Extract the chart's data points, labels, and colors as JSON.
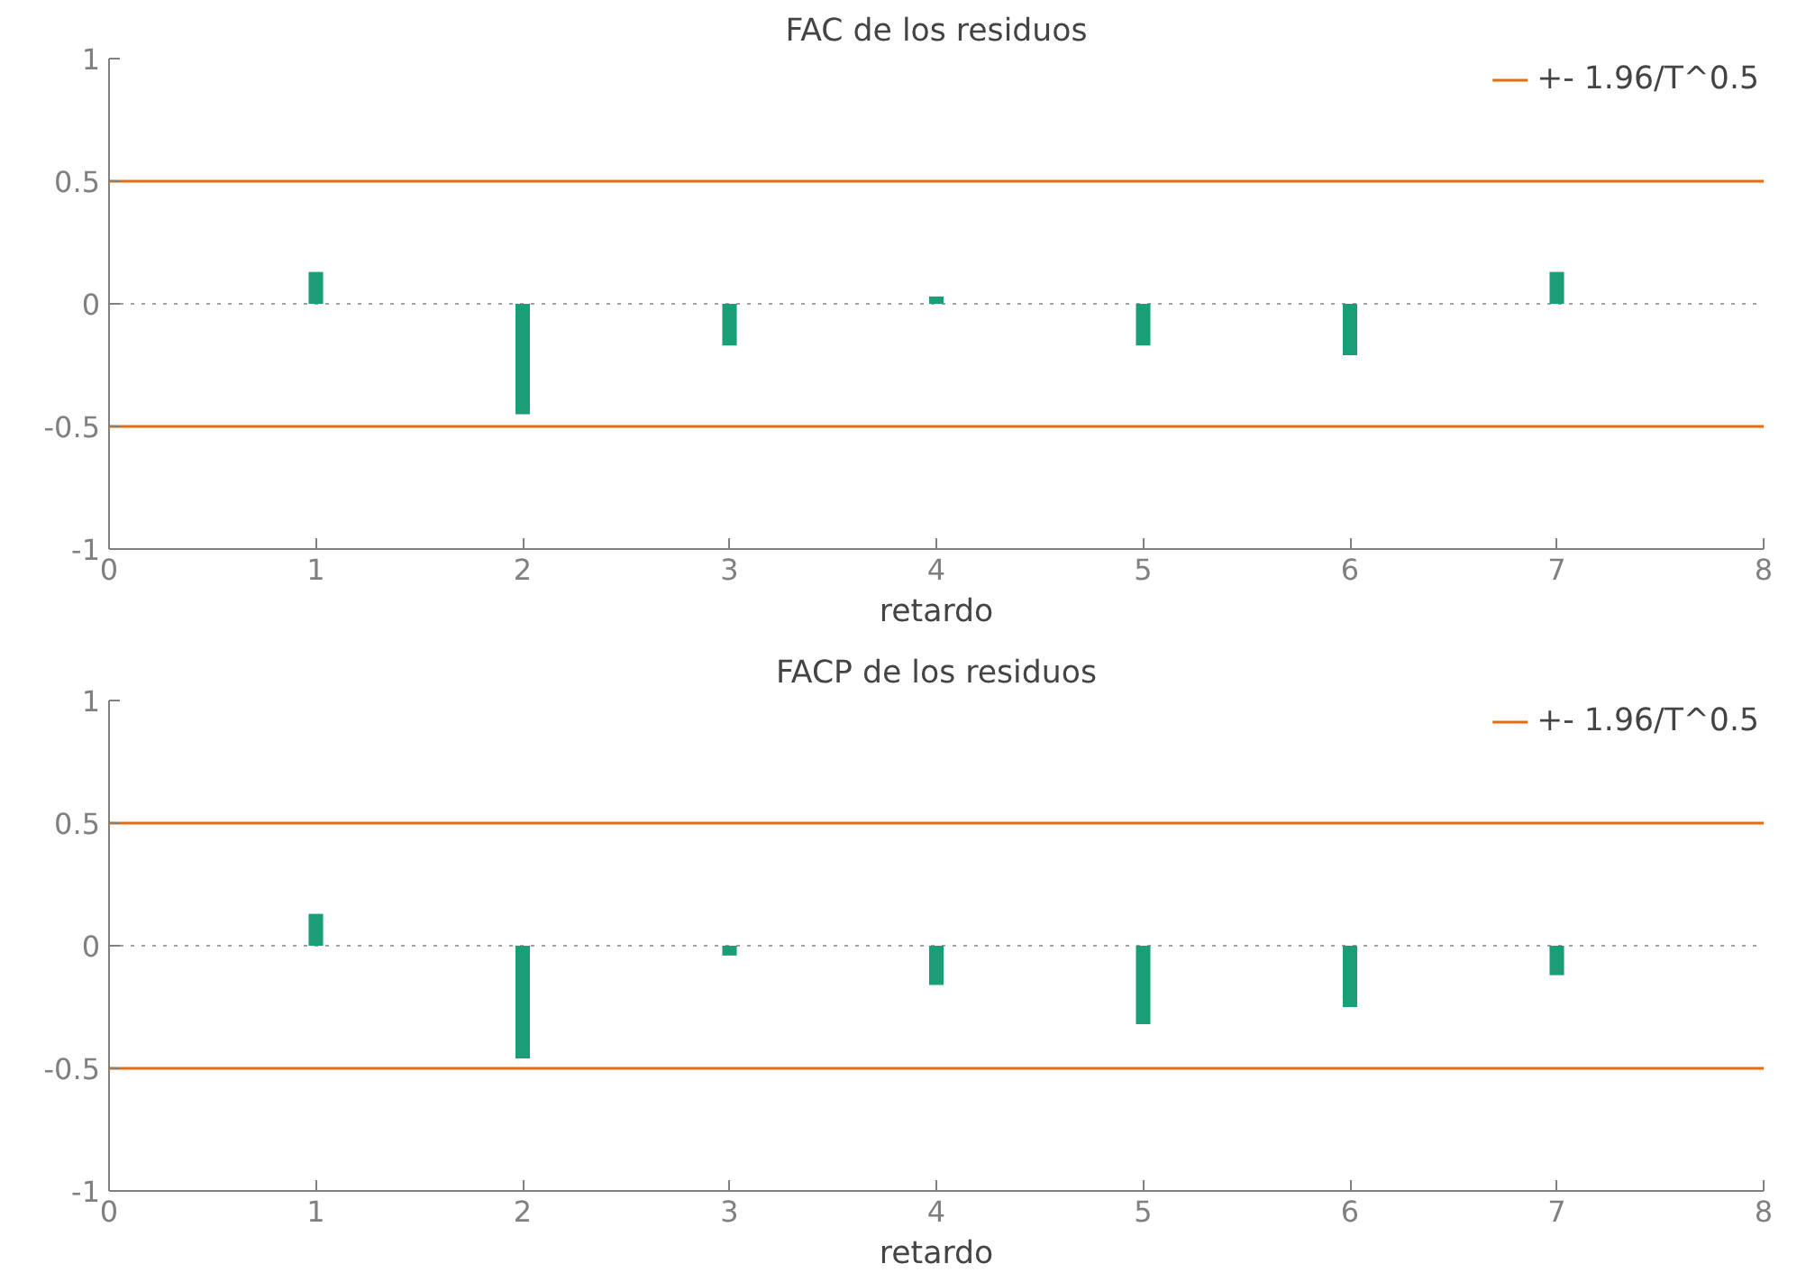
{
  "chart_data": [
    {
      "type": "bar",
      "title": "FAC de los residuos",
      "xlabel": "retardo",
      "x": [
        1,
        2,
        3,
        4,
        5,
        6,
        7
      ],
      "series": [
        {
          "color": "#1a9e77",
          "values": [
            0.13,
            -0.45,
            -0.17,
            0.03,
            -0.17,
            -0.21,
            0.13
          ]
        }
      ],
      "xlim": [
        0,
        8
      ],
      "xticks": [
        0,
        1,
        2,
        3,
        4,
        5,
        6,
        7,
        8
      ],
      "ylim": [
        -1,
        1
      ],
      "yticks": [
        -1,
        -0.5,
        0,
        0.5,
        1
      ],
      "ref_lines": [
        {
          "axis": "y",
          "value": 0.5,
          "label": "+- 1.96/T^0.5",
          "color": "#e66b0a",
          "line_style": "solid"
        },
        {
          "axis": "y",
          "value": -0.5,
          "color": "#e66b0a",
          "line_style": "solid"
        },
        {
          "axis": "y",
          "value": 0,
          "color": "#a0a0a0",
          "line_style": "dotted"
        }
      ],
      "legend": "top right",
      "grid": false
    },
    {
      "type": "bar",
      "title": "FACP de los residuos",
      "xlabel": "retardo",
      "x": [
        1,
        2,
        3,
        4,
        5,
        6,
        7
      ],
      "series": [
        {
          "color": "#1a9e77",
          "values": [
            0.13,
            -0.46,
            -0.04,
            -0.16,
            -0.32,
            -0.25,
            -0.12
          ]
        }
      ],
      "xlim": [
        0,
        8
      ],
      "xticks": [
        0,
        1,
        2,
        3,
        4,
        5,
        6,
        7,
        8
      ],
      "ylim": [
        -1,
        1
      ],
      "yticks": [
        -1,
        -0.5,
        0,
        0.5,
        1
      ],
      "ref_lines": [
        {
          "axis": "y",
          "value": 0.5,
          "label": "+- 1.96/T^0.5",
          "color": "#e66b0a",
          "line_style": "solid"
        },
        {
          "axis": "y",
          "value": -0.5,
          "color": "#e66b0a",
          "line_style": "solid"
        },
        {
          "axis": "y",
          "value": 0,
          "color": "#a0a0a0",
          "line_style": "dotted"
        }
      ],
      "legend": "top right",
      "grid": false
    }
  ]
}
